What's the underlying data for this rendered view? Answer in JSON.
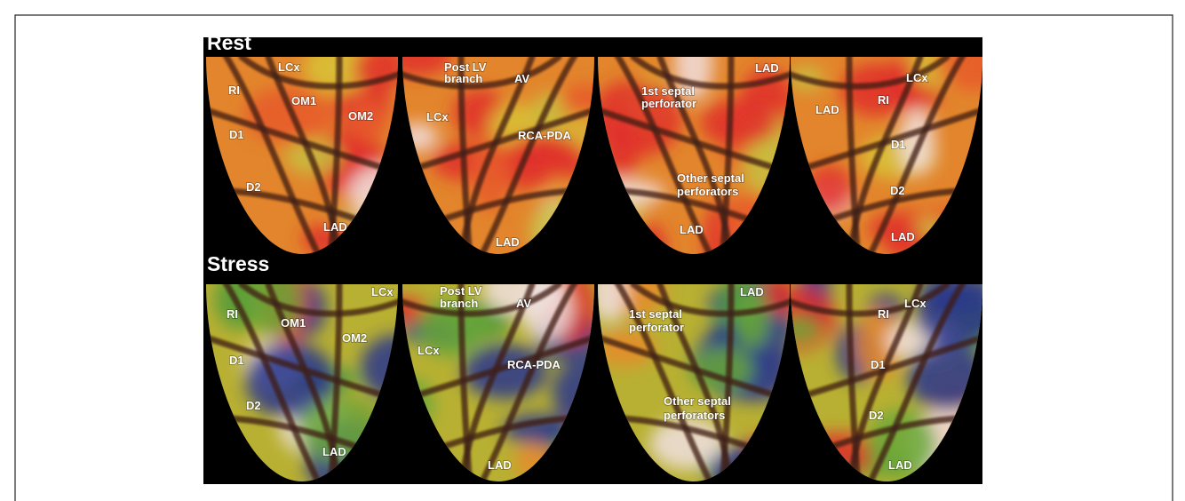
{
  "figure": {
    "rows": [
      {
        "title": "Rest",
        "panels": [
          {
            "labels": [
              "LCx",
              "RI",
              "OM1",
              "OM2",
              "D1",
              "D2",
              "LAD"
            ]
          },
          {
            "labels": [
              "Post LV",
              "branch",
              "AV",
              "LCx",
              "RCA-PDA",
              "LAD"
            ]
          },
          {
            "labels": [
              "LAD",
              "1st septal",
              "perforator",
              "Other septal",
              "perforators",
              "LAD"
            ]
          },
          {
            "labels": [
              "LCx",
              "RI",
              "LAD",
              "D1",
              "D2",
              "LAD"
            ]
          }
        ]
      },
      {
        "title": "Stress",
        "panels": [
          {
            "labels": [
              "LCx",
              "RI",
              "OM1",
              "OM2",
              "D1",
              "D2",
              "LAD"
            ]
          },
          {
            "labels": [
              "Post LV",
              "branch",
              "AV",
              "LCx",
              "RCA-PDA",
              "LAD"
            ]
          },
          {
            "labels": [
              "LAD",
              "1st septal",
              "perforator",
              "Other septal",
              "perforators"
            ]
          },
          {
            "labels": [
              "LCx",
              "RI",
              "D1",
              "D2",
              "LAD"
            ]
          }
        ]
      }
    ]
  }
}
